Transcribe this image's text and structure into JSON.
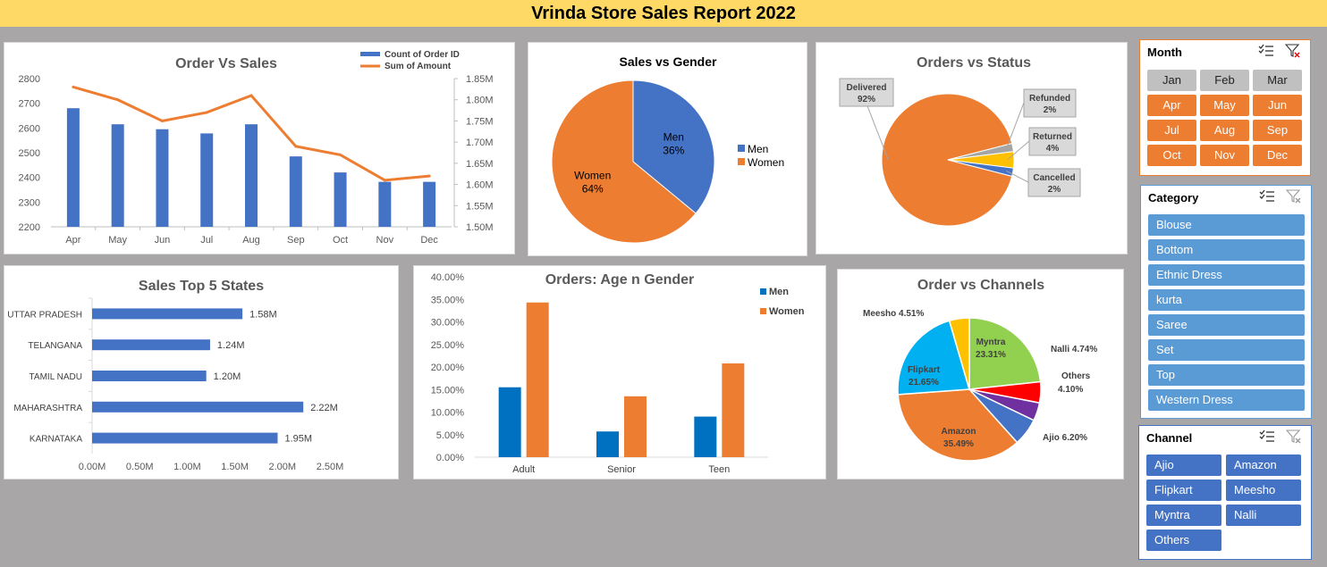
{
  "report_title": "Vrinda Store Sales Report 2022",
  "chart_data": [
    {
      "id": "order_vs_sales",
      "type": "bar",
      "title": "Order Vs Sales",
      "categories": [
        "Apr",
        "May",
        "Jun",
        "Jul",
        "Aug",
        "Sep",
        "Oct",
        "Nov",
        "Dec"
      ],
      "series": [
        {
          "name": "Count of Order ID",
          "type": "bar",
          "axis": "left",
          "color": "#4472c4",
          "values": [
            2680,
            2615,
            2595,
            2578,
            2615,
            2485,
            2420,
            2382,
            2382
          ]
        },
        {
          "name": "Sum of Amount",
          "type": "line",
          "axis": "right",
          "color": "#ed7d31",
          "values": [
            1.83,
            1.8,
            1.75,
            1.77,
            1.81,
            1.69,
            1.67,
            1.61,
            1.62
          ]
        }
      ],
      "ylim": [
        2200,
        2800
      ],
      "yticks": [
        "2800",
        "2700",
        "2600",
        "2500",
        "2400",
        "2300",
        "2200"
      ],
      "y2lim": [
        1.5,
        1.85
      ],
      "y2ticks": [
        "1.85M",
        "1.80M",
        "1.75M",
        "1.70M",
        "1.65M",
        "1.60M",
        "1.55M",
        "1.50M"
      ],
      "legend": "top-right"
    },
    {
      "id": "sales_vs_gender",
      "type": "pie",
      "title": "Sales vs Gender",
      "slices": [
        {
          "label": "Men",
          "pct_label": "36%",
          "value": 36,
          "color": "#4472c4"
        },
        {
          "label": "Women",
          "pct_label": "64%",
          "value": 64,
          "color": "#ed7d31"
        }
      ],
      "legend": "right"
    },
    {
      "id": "orders_vs_status",
      "type": "pie",
      "title": "Orders vs Status",
      "slices": [
        {
          "label": "Delivered",
          "pct_label": "92%",
          "value": 92,
          "color": "#ed7d31"
        },
        {
          "label": "Refunded",
          "pct_label": "2%",
          "value": 2,
          "color": "#a5a5a5"
        },
        {
          "label": "Returned",
          "pct_label": "4%",
          "value": 4,
          "color": "#ffc000"
        },
        {
          "label": "Cancelled",
          "pct_label": "2%",
          "value": 2,
          "color": "#4472c4"
        }
      ]
    },
    {
      "id": "sales_top5_states",
      "type": "bar",
      "orientation": "horizontal",
      "title": "Sales Top 5 States",
      "categories": [
        "UTTAR PRADESH",
        "TELANGANA",
        "TAMIL NADU",
        "MAHARASHTRA",
        "KARNATAKA"
      ],
      "values": [
        1.58,
        1.24,
        1.2,
        2.22,
        1.95
      ],
      "value_labels": [
        "1.58M",
        "1.24M",
        "1.20M",
        "2.22M",
        "1.95M"
      ],
      "xlim": [
        0,
        2.5
      ],
      "xticks": [
        "0.00M",
        "0.50M",
        "1.00M",
        "1.50M",
        "2.00M",
        "2.50M"
      ],
      "color": "#4472c4"
    },
    {
      "id": "orders_age_gender",
      "type": "bar",
      "title": "Orders:  Age n Gender",
      "categories": [
        "Adult",
        "Senior",
        "Teen"
      ],
      "series": [
        {
          "name": "Men",
          "color": "#0070c0",
          "values": [
            15.5,
            5.7,
            9.0
          ]
        },
        {
          "name": "Women",
          "color": "#ed7d31",
          "values": [
            34.3,
            13.5,
            20.8
          ]
        }
      ],
      "ylim": [
        0,
        40
      ],
      "yticks": [
        "40.00%",
        "35.00%",
        "30.00%",
        "25.00%",
        "20.00%",
        "15.00%",
        "10.00%",
        "5.00%",
        "0.00%"
      ],
      "legend": "top-right"
    },
    {
      "id": "order_vs_channels",
      "type": "pie",
      "title": "Order vs Channels",
      "slices": [
        {
          "label": "Myntra",
          "pct_label": "23.31%",
          "value": 23.31,
          "color": "#92d050"
        },
        {
          "label": "Nalli",
          "pct_label": "4.74%",
          "value": 4.74,
          "color": "#ff0000"
        },
        {
          "label": "Others",
          "pct_label": "4.10%",
          "value": 4.1,
          "color": "#7030a0"
        },
        {
          "label": "Ajio",
          "pct_label": "6.20%",
          "value": 6.2,
          "color": "#4472c4"
        },
        {
          "label": "Amazon",
          "pct_label": "35.49%",
          "value": 35.49,
          "color": "#ed7d31"
        },
        {
          "label": "Flipkart",
          "pct_label": "21.65%",
          "value": 21.65,
          "color": "#00b0f0"
        },
        {
          "label": "Meesho",
          "pct_label": "4.51%",
          "value": 4.51,
          "color": "#ffc000"
        }
      ]
    }
  ],
  "slicers": {
    "month": {
      "title": "Month",
      "items": [
        {
          "label": "Jan",
          "selected": false
        },
        {
          "label": "Feb",
          "selected": false
        },
        {
          "label": "Mar",
          "selected": false
        },
        {
          "label": "Apr",
          "selected": true
        },
        {
          "label": "May",
          "selected": true
        },
        {
          "label": "Jun",
          "selected": true
        },
        {
          "label": "Jul",
          "selected": true
        },
        {
          "label": "Aug",
          "selected": true
        },
        {
          "label": "Sep",
          "selected": true
        },
        {
          "label": "Oct",
          "selected": true
        },
        {
          "label": "Nov",
          "selected": true
        },
        {
          "label": "Dec",
          "selected": true
        }
      ]
    },
    "category": {
      "title": "Category",
      "items": [
        "Blouse",
        "Bottom",
        "Ethnic Dress",
        "kurta",
        "Saree",
        "Set",
        "Top",
        "Western Dress"
      ]
    },
    "channel": {
      "title": "Channel",
      "items": [
        "Ajio",
        "Amazon",
        "Flipkart",
        "Meesho",
        "Myntra",
        "Nalli",
        "Others"
      ]
    }
  },
  "icons": {
    "multi_select": "multi-select-icon",
    "clear_filter": "clear-filter-icon"
  }
}
